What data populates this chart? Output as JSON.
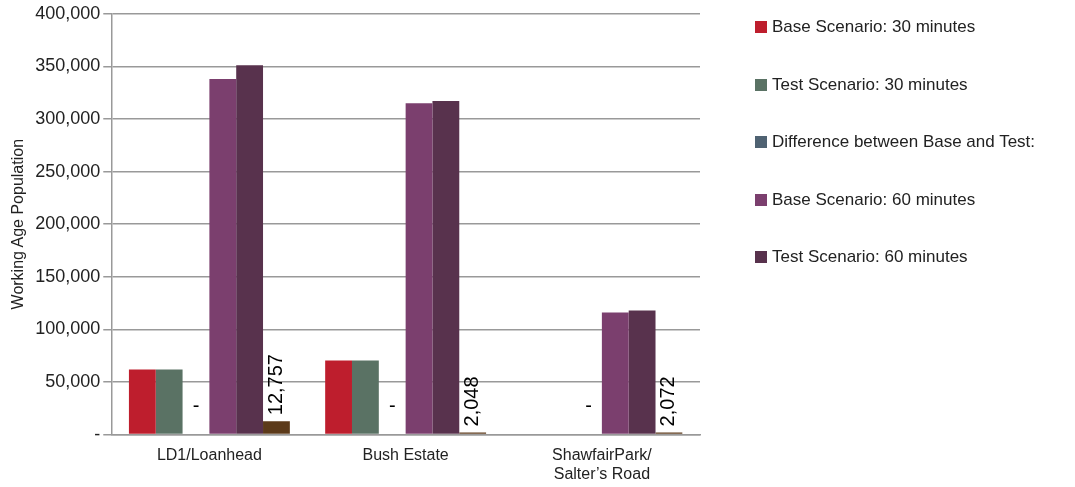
{
  "chart_data": {
    "type": "bar",
    "ylabel": "Working Age Population",
    "categories": [
      "LD1/Loanhead",
      "Bush Estate",
      "ShawfairPark/\nSalter’s Road"
    ],
    "series": [
      {
        "name": "Base Scenario: 30 minutes",
        "color": "#be1e2d",
        "values": [
          62000,
          70500,
          null
        ]
      },
      {
        "name": "Test Scenario: 30 minutes",
        "color": "#5a7264",
        "values": [
          62000,
          70500,
          null
        ]
      },
      {
        "name": "Difference between Base and Test:",
        "color": "#4f6272",
        "values": [
          0,
          0,
          0
        ],
        "value_labels": [
          "-",
          "-",
          "-"
        ]
      },
      {
        "name": "Base Scenario: 60 minutes",
        "color": "#7b3f6e",
        "values": [
          338000,
          315000,
          116000
        ]
      },
      {
        "name": "Test Scenario: 60 minutes",
        "color": "#58324d",
        "values": [
          351000,
          317000,
          118000
        ]
      },
      {
        "color": "#5c3a1a",
        "values": [
          12757,
          2048,
          2072
        ],
        "value_labels": [
          "12,757",
          "2,048",
          "2,072"
        ]
      }
    ],
    "ylim": [
      0,
      400000
    ],
    "yticks": [
      {
        "value": 0,
        "label": "-"
      },
      {
        "value": 50000,
        "label": "50,000"
      },
      {
        "value": 100000,
        "label": "100,000"
      },
      {
        "value": 150000,
        "label": "150,000"
      },
      {
        "value": 200000,
        "label": "200,000"
      },
      {
        "value": 250000,
        "label": "250,000"
      },
      {
        "value": 300000,
        "label": "300,000"
      },
      {
        "value": 350000,
        "label": "350,000"
      },
      {
        "value": 400000,
        "label": "400,000"
      }
    ],
    "grid": "y",
    "legend": "right"
  }
}
